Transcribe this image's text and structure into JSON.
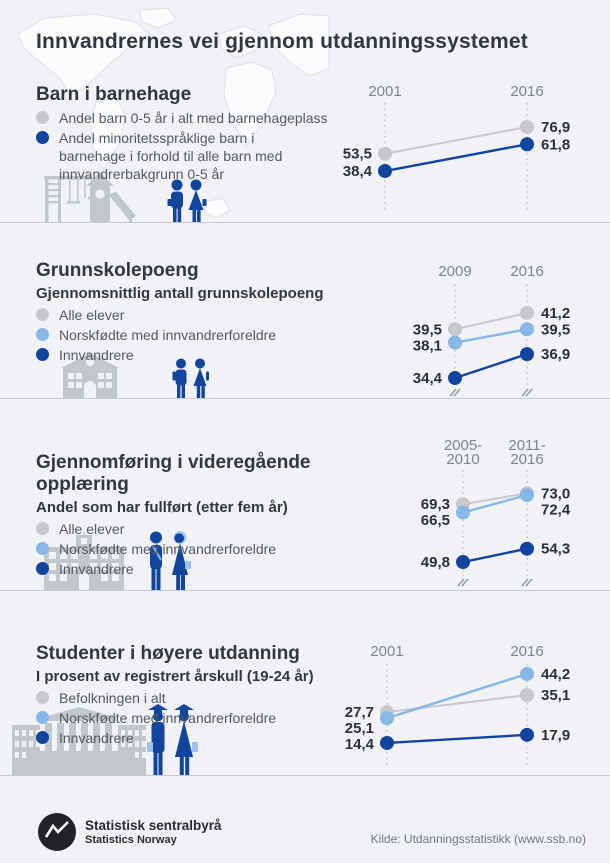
{
  "header": {
    "title": "Innvandrernes vei gjennom utdanningssystemet"
  },
  "colors": {
    "dark_blue": "#10459f",
    "light_blue": "#85b8e6",
    "gray": "#c6c8cc",
    "accent_lightblue": "#9cc4ec"
  },
  "sections": [
    {
      "id": "barnehage",
      "title": "Barn i barnehage",
      "subtitle": "",
      "legend": [
        {
          "color": "gray",
          "label": "Andel barn 0-5 år i alt med barnehageplass"
        },
        {
          "color": "dark_blue",
          "label": "Andel minoritetsspråklige barn i barnehage i forhold til alle barn med innvandrerbakgrunn 0-5 år"
        }
      ],
      "icons": [
        "playground-icon",
        "children-icon"
      ]
    },
    {
      "id": "grunnskole",
      "title": "Grunnskolepoeng",
      "subtitle": "Gjennomsnittlig antall grunnskolepoeng",
      "legend": [
        {
          "color": "gray",
          "label": "Alle elever"
        },
        {
          "color": "light_blue",
          "label": "Norskfødte med innvandrerforeldre"
        },
        {
          "color": "dark_blue",
          "label": "Innvandrere"
        }
      ],
      "icons": [
        "school-icon",
        "pupils-icon"
      ]
    },
    {
      "id": "videregaende",
      "title": "Gjennomføring i videregående opplæring",
      "subtitle": "Andel som har fullført (etter fem år)",
      "legend": [
        {
          "color": "gray",
          "label": "Alle elever"
        },
        {
          "color": "light_blue",
          "label": "Norskfødte med innvandrerforeldre"
        },
        {
          "color": "dark_blue",
          "label": "Innvandrere"
        }
      ],
      "icons": [
        "highschool-icon",
        "teens-icon"
      ]
    },
    {
      "id": "hoyere",
      "title": "Studenter i høyere utdanning",
      "subtitle": "I prosent av registrert årskull (19-24 år)",
      "legend": [
        {
          "color": "gray",
          "label": "Befolkningen i alt"
        },
        {
          "color": "light_blue",
          "label": "Norskfødte med innvandrerforeldre"
        },
        {
          "color": "dark_blue",
          "label": "Innvandrere"
        }
      ],
      "icons": [
        "university-icon",
        "graduates-icon"
      ]
    }
  ],
  "chart_data": [
    {
      "type": "line",
      "title": "Barn i barnehage",
      "categories": [
        "2001",
        "2016"
      ],
      "series": [
        {
          "name": "Andel barn 0-5 år i alt med barnehageplass",
          "color": "gray",
          "values": [
            53.5,
            76.9
          ]
        },
        {
          "name": "Andel minoritetsspråklige barn i barnehage i forhold til alle barn med innvandrerbakgrunn 0-5 år",
          "color": "dark_blue",
          "values": [
            38.4,
            61.8
          ]
        }
      ],
      "value_label_format": "comma-decimal",
      "legend_position": "left",
      "grid": false
    },
    {
      "type": "line",
      "title": "Grunnskolepoeng",
      "categories": [
        "2009",
        "2016"
      ],
      "series": [
        {
          "name": "Alle elever",
          "color": "gray",
          "values": [
            39.5,
            41.2
          ]
        },
        {
          "name": "Norskfødte med innvandrerforeldre",
          "color": "light_blue",
          "values": [
            38.1,
            39.5
          ]
        },
        {
          "name": "Innvandrere",
          "color": "dark_blue",
          "values": [
            34.4,
            36.9
          ]
        }
      ],
      "axis_break": true,
      "value_label_format": "comma-decimal",
      "legend_position": "left",
      "grid": false
    },
    {
      "type": "line",
      "title": "Gjennomføring i videregående opplæring",
      "categories": [
        "2005-2010",
        "2011-2016"
      ],
      "series": [
        {
          "name": "Alle elever",
          "color": "gray",
          "values": [
            69.3,
            73.0
          ]
        },
        {
          "name": "Norskfødte med innvandrerforeldre",
          "color": "light_blue",
          "values": [
            66.5,
            72.4
          ]
        },
        {
          "name": "Innvandrere",
          "color": "dark_blue",
          "values": [
            49.8,
            54.3
          ]
        }
      ],
      "axis_break": true,
      "value_label_format": "comma-decimal",
      "legend_position": "left",
      "grid": false
    },
    {
      "type": "line",
      "title": "Studenter i høyere utdanning",
      "categories": [
        "2001",
        "2016"
      ],
      "series": [
        {
          "name": "Befolkningen i alt",
          "color": "gray",
          "values": [
            27.7,
            35.1
          ]
        },
        {
          "name": "Norskfødte med innvandrerforeldre",
          "color": "light_blue",
          "values": [
            25.1,
            44.2
          ]
        },
        {
          "name": "Innvandrere",
          "color": "dark_blue",
          "values": [
            14.4,
            17.9
          ]
        }
      ],
      "value_label_format": "comma-decimal",
      "legend_position": "left",
      "grid": false
    }
  ],
  "footer": {
    "org_name": "Statistisk sentralbyrå",
    "org_name_en": "Statistics Norway",
    "source": "Kilde: Utdanningsstatistikk (www.ssb.no)"
  }
}
